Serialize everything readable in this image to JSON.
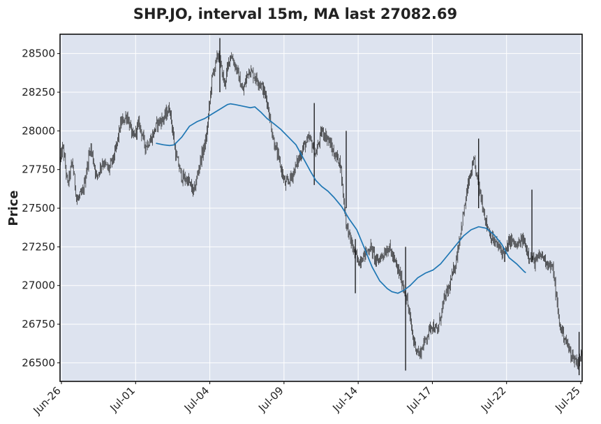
{
  "chart_data": {
    "type": "candlestick",
    "title": "SHP.JO, interval 15m, MA last 27082.69",
    "xlabel": "",
    "ylabel": "Price",
    "ylim": [
      26380,
      28625
    ],
    "grid": true,
    "x_tick_labels": [
      "Jun-26",
      "Jul-01",
      "Jul-04",
      "Jul-09",
      "Jul-14",
      "Jul-17",
      "Jul-22",
      "Jul-25"
    ],
    "y_ticks": [
      26500,
      26750,
      27000,
      27250,
      27500,
      27750,
      28000,
      28250,
      28500
    ],
    "price_path": [
      [
        0,
        27800
      ],
      [
        2,
        27900
      ],
      [
        5,
        27650
      ],
      [
        8,
        27800
      ],
      [
        11,
        27550
      ],
      [
        15,
        27600
      ],
      [
        20,
        27900
      ],
      [
        24,
        27700
      ],
      [
        28,
        27800
      ],
      [
        32,
        27750
      ],
      [
        36,
        27850
      ],
      [
        40,
        28050
      ],
      [
        44,
        28100
      ],
      [
        48,
        27950
      ],
      [
        52,
        28050
      ],
      [
        56,
        27900
      ],
      [
        60,
        27950
      ],
      [
        64,
        28050
      ],
      [
        68,
        28080
      ],
      [
        72,
        28150
      ],
      [
        76,
        27850
      ],
      [
        80,
        27700
      ],
      [
        84,
        27680
      ],
      [
        88,
        27600
      ],
      [
        92,
        27800
      ],
      [
        96,
        27950
      ],
      [
        100,
        28350
      ],
      [
        104,
        28500
      ],
      [
        108,
        28300
      ],
      [
        112,
        28500
      ],
      [
        116,
        28400
      ],
      [
        120,
        28250
      ],
      [
        124,
        28400
      ],
      [
        128,
        28350
      ],
      [
        132,
        28300
      ],
      [
        136,
        28200
      ],
      [
        140,
        27950
      ],
      [
        144,
        27800
      ],
      [
        148,
        27650
      ],
      [
        152,
        27700
      ],
      [
        156,
        27800
      ],
      [
        160,
        27900
      ],
      [
        164,
        27950
      ],
      [
        168,
        27850
      ],
      [
        172,
        28000
      ],
      [
        176,
        27950
      ],
      [
        180,
        27850
      ],
      [
        184,
        27800
      ],
      [
        188,
        27400
      ],
      [
        192,
        27250
      ],
      [
        196,
        27150
      ],
      [
        200,
        27200
      ],
      [
        204,
        27250
      ],
      [
        208,
        27150
      ],
      [
        212,
        27200
      ],
      [
        216,
        27250
      ],
      [
        220,
        27150
      ],
      [
        224,
        27050
      ],
      [
        228,
        26900
      ],
      [
        232,
        26650
      ],
      [
        236,
        26550
      ],
      [
        240,
        26650
      ],
      [
        244,
        26750
      ],
      [
        248,
        26700
      ],
      [
        252,
        26900
      ],
      [
        256,
        27000
      ],
      [
        260,
        27150
      ],
      [
        264,
        27400
      ],
      [
        268,
        27650
      ],
      [
        272,
        27800
      ],
      [
        276,
        27600
      ],
      [
        280,
        27400
      ],
      [
        284,
        27300
      ],
      [
        288,
        27250
      ],
      [
        292,
        27200
      ],
      [
        296,
        27300
      ],
      [
        300,
        27250
      ],
      [
        304,
        27300
      ],
      [
        308,
        27200
      ],
      [
        312,
        27150
      ],
      [
        316,
        27200
      ],
      [
        320,
        27150
      ],
      [
        324,
        27100
      ],
      [
        328,
        26750
      ],
      [
        332,
        26650
      ],
      [
        336,
        26550
      ],
      [
        340,
        26500
      ],
      [
        343,
        26550
      ]
    ],
    "spikes": [
      {
        "t": 105,
        "hi": 28600,
        "lo": 28250
      },
      {
        "t": 167,
        "hi": 28180,
        "lo": 27650
      },
      {
        "t": 188,
        "hi": 28000,
        "lo": 27500
      },
      {
        "t": 194,
        "hi": 27300,
        "lo": 26950
      },
      {
        "t": 227,
        "hi": 27250,
        "lo": 26450
      },
      {
        "t": 275,
        "hi": 27950,
        "lo": 27500
      },
      {
        "t": 310,
        "hi": 27620,
        "lo": 27150
      },
      {
        "t": 341,
        "hi": 26700,
        "lo": 26420
      }
    ],
    "moving_average": {
      "color": "#1f77b4",
      "points": [
        [
          63,
          27920
        ],
        [
          68,
          27910
        ],
        [
          72,
          27905
        ],
        [
          75,
          27910
        ],
        [
          80,
          27960
        ],
        [
          85,
          28030
        ],
        [
          90,
          28060
        ],
        [
          95,
          28080
        ],
        [
          100,
          28110
        ],
        [
          105,
          28140
        ],
        [
          110,
          28170
        ],
        [
          112,
          28175
        ],
        [
          115,
          28170
        ],
        [
          120,
          28160
        ],
        [
          125,
          28150
        ],
        [
          128,
          28155
        ],
        [
          132,
          28120
        ],
        [
          136,
          28080
        ],
        [
          140,
          28050
        ],
        [
          145,
          28010
        ],
        [
          150,
          27960
        ],
        [
          155,
          27910
        ],
        [
          160,
          27820
        ],
        [
          165,
          27730
        ],
        [
          168,
          27680
        ],
        [
          172,
          27640
        ],
        [
          176,
          27610
        ],
        [
          180,
          27570
        ],
        [
          185,
          27510
        ],
        [
          190,
          27430
        ],
        [
          195,
          27360
        ],
        [
          200,
          27240
        ],
        [
          205,
          27120
        ],
        [
          210,
          27030
        ],
        [
          215,
          26980
        ],
        [
          218,
          26960
        ],
        [
          222,
          26950
        ],
        [
          226,
          26970
        ],
        [
          230,
          27000
        ],
        [
          235,
          27050
        ],
        [
          240,
          27080
        ],
        [
          245,
          27100
        ],
        [
          250,
          27140
        ],
        [
          255,
          27200
        ],
        [
          260,
          27260
        ],
        [
          265,
          27320
        ],
        [
          270,
          27360
        ],
        [
          275,
          27380
        ],
        [
          280,
          27370
        ],
        [
          285,
          27330
        ],
        [
          290,
          27270
        ],
        [
          295,
          27180
        ],
        [
          300,
          27140
        ],
        [
          305,
          27090
        ],
        [
          306,
          27083
        ]
      ]
    }
  }
}
